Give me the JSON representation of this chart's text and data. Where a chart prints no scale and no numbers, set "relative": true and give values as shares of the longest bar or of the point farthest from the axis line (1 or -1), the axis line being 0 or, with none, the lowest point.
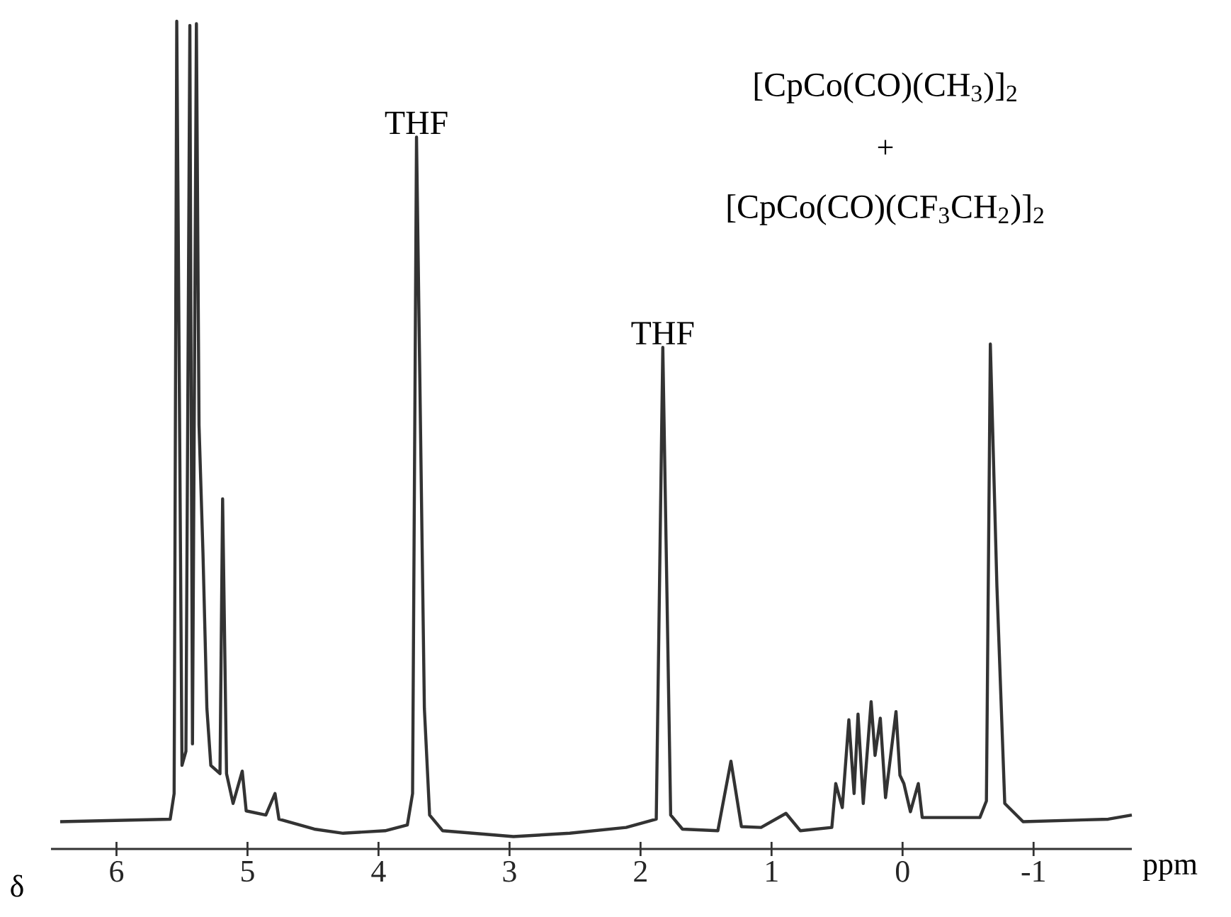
{
  "chart_data": {
    "type": "line",
    "relative": true,
    "xlabel": "ppm",
    "xlim": [
      6.5,
      -1.75
    ],
    "xticks": [
      6,
      5,
      4,
      3,
      2,
      1,
      0,
      -1
    ],
    "annotations": [
      "δ",
      "[CpCo(CO)(CH$_{3}$)]$_{2}$",
      "+",
      "[CpCo(CO)(CF$_{3}$CH$_{2}$)]$_{2}$",
      {
        "text": "THF",
        "x": 3.71,
        "y": 0.86
      },
      {
        "text": "THF",
        "x": 1.83,
        "y": 0.606
      }
    ],
    "series": [
      {
        "color": "#333333",
        "x": [
          6.43,
          5.59,
          5.56,
          5.54,
          5.5,
          5.47,
          5.44,
          5.42,
          5.39,
          5.37,
          5.34,
          5.31,
          5.28,
          5.21,
          5.19,
          5.16,
          5.11,
          5.04,
          5.01,
          4.86,
          4.79,
          4.76,
          4.49,
          4.27,
          3.95,
          3.78,
          3.74,
          3.71,
          3.65,
          3.61,
          3.51,
          2.97,
          2.54,
          2.11,
          1.88,
          1.83,
          1.77,
          1.68,
          1.41,
          1.31,
          1.23,
          1.08,
          0.89,
          0.78,
          0.54,
          0.51,
          0.46,
          0.41,
          0.37,
          0.34,
          0.3,
          0.24,
          0.21,
          0.17,
          0.13,
          0.05,
          0.02,
          -0.01,
          -0.06,
          -0.12,
          -0.15,
          -0.59,
          -0.64,
          -0.67,
          -0.72,
          -0.78,
          -0.92,
          -1.57,
          -1.75
        ],
        "values": [
          0.033,
          0.036,
          0.067,
          1.0,
          0.101,
          0.118,
          0.995,
          0.127,
          0.997,
          0.512,
          0.358,
          0.17,
          0.101,
          0.091,
          0.423,
          0.091,
          0.055,
          0.094,
          0.046,
          0.041,
          0.067,
          0.036,
          0.024,
          0.019,
          0.022,
          0.029,
          0.067,
          0.86,
          0.17,
          0.041,
          0.022,
          0.015,
          0.019,
          0.026,
          0.036,
          0.606,
          0.041,
          0.024,
          0.022,
          0.106,
          0.027,
          0.026,
          0.043,
          0.022,
          0.026,
          0.079,
          0.05,
          0.156,
          0.067,
          0.163,
          0.055,
          0.178,
          0.113,
          0.158,
          0.062,
          0.166,
          0.089,
          0.079,
          0.045,
          0.079,
          0.038,
          0.038,
          0.058,
          0.61,
          0.318,
          0.055,
          0.033,
          0.036,
          0.041
        ]
      }
    ]
  }
}
